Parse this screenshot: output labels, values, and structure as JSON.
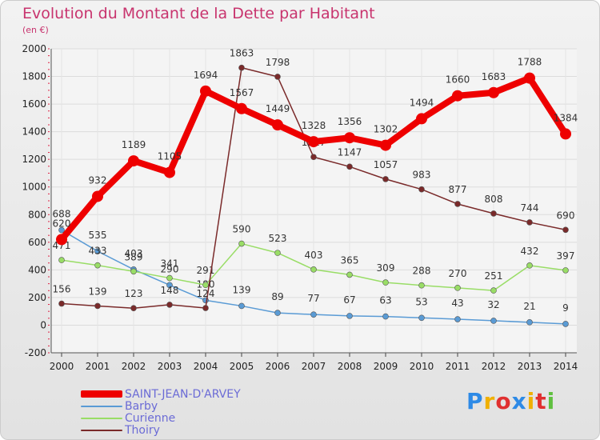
{
  "header": {
    "title": "Evolution du Montant de la Dette par Habitant",
    "subtitle": "(en €)"
  },
  "brand": {
    "letters": [
      "P",
      "r",
      "o",
      "x",
      "i",
      "t",
      "i"
    ],
    "colors": [
      "#2e8ae6",
      "#f0b000",
      "#e03030",
      "#2e8ae6",
      "#f0b000",
      "#e03030",
      "#60c040"
    ]
  },
  "chart_data": {
    "type": "line",
    "x": [
      2000,
      2001,
      2002,
      2003,
      2004,
      2005,
      2006,
      2007,
      2008,
      2009,
      2010,
      2011,
      2012,
      2013,
      2014
    ],
    "yticks": [
      -200,
      0,
      200,
      400,
      600,
      800,
      1000,
      1200,
      1400,
      1600,
      1800,
      2000
    ],
    "ylim": [
      -200,
      2000
    ],
    "grid": true,
    "legend": "bottom-left",
    "series": [
      {
        "name": "SAINT-JEAN-D'ARVEY",
        "color": "#ee0000",
        "values": [
          620,
          932,
          1189,
          1105,
          1694,
          1567,
          1449,
          1328,
          1356,
          1302,
          1494,
          1660,
          1683,
          1788,
          1384
        ],
        "labels": [
          "620",
          "932",
          "1189",
          "1105",
          "1694",
          "1567",
          "1449",
          "1328",
          "1356",
          "1302",
          "1494",
          "1660",
          "1683",
          "1788",
          "1384"
        ]
      },
      {
        "name": "Barby",
        "color": "#5a9bd5",
        "values": [
          688,
          535,
          403,
          290,
          180,
          139,
          89,
          77,
          67,
          63,
          53,
          43,
          32,
          21,
          9
        ],
        "labels": [
          "688",
          "535",
          "403",
          "290",
          "180",
          "139",
          "89",
          "77",
          "67",
          "63",
          "53",
          "43",
          "32",
          "21",
          "9"
        ]
      },
      {
        "name": "Curienne",
        "color": "#99dd66",
        "values": [
          471,
          433,
          389,
          341,
          291,
          590,
          523,
          403,
          365,
          309,
          288,
          270,
          251,
          432,
          397
        ],
        "labels": [
          "471",
          "433",
          "389",
          "341",
          "291",
          "590",
          "523",
          "403",
          "365",
          "309",
          "288",
          "270",
          "251",
          "432",
          "397"
        ]
      },
      {
        "name": "Thoiry",
        "color": "#7a2a2a",
        "values": [
          156,
          139,
          123,
          148,
          124,
          1863,
          1798,
          1217,
          1147,
          1057,
          983,
          877,
          808,
          744,
          690
        ],
        "labels": [
          "156",
          "139",
          "123",
          "148",
          "124",
          "1863",
          "1798",
          "1217",
          "1147",
          "1057",
          "983",
          "877",
          "808",
          "744",
          "690"
        ]
      }
    ]
  }
}
